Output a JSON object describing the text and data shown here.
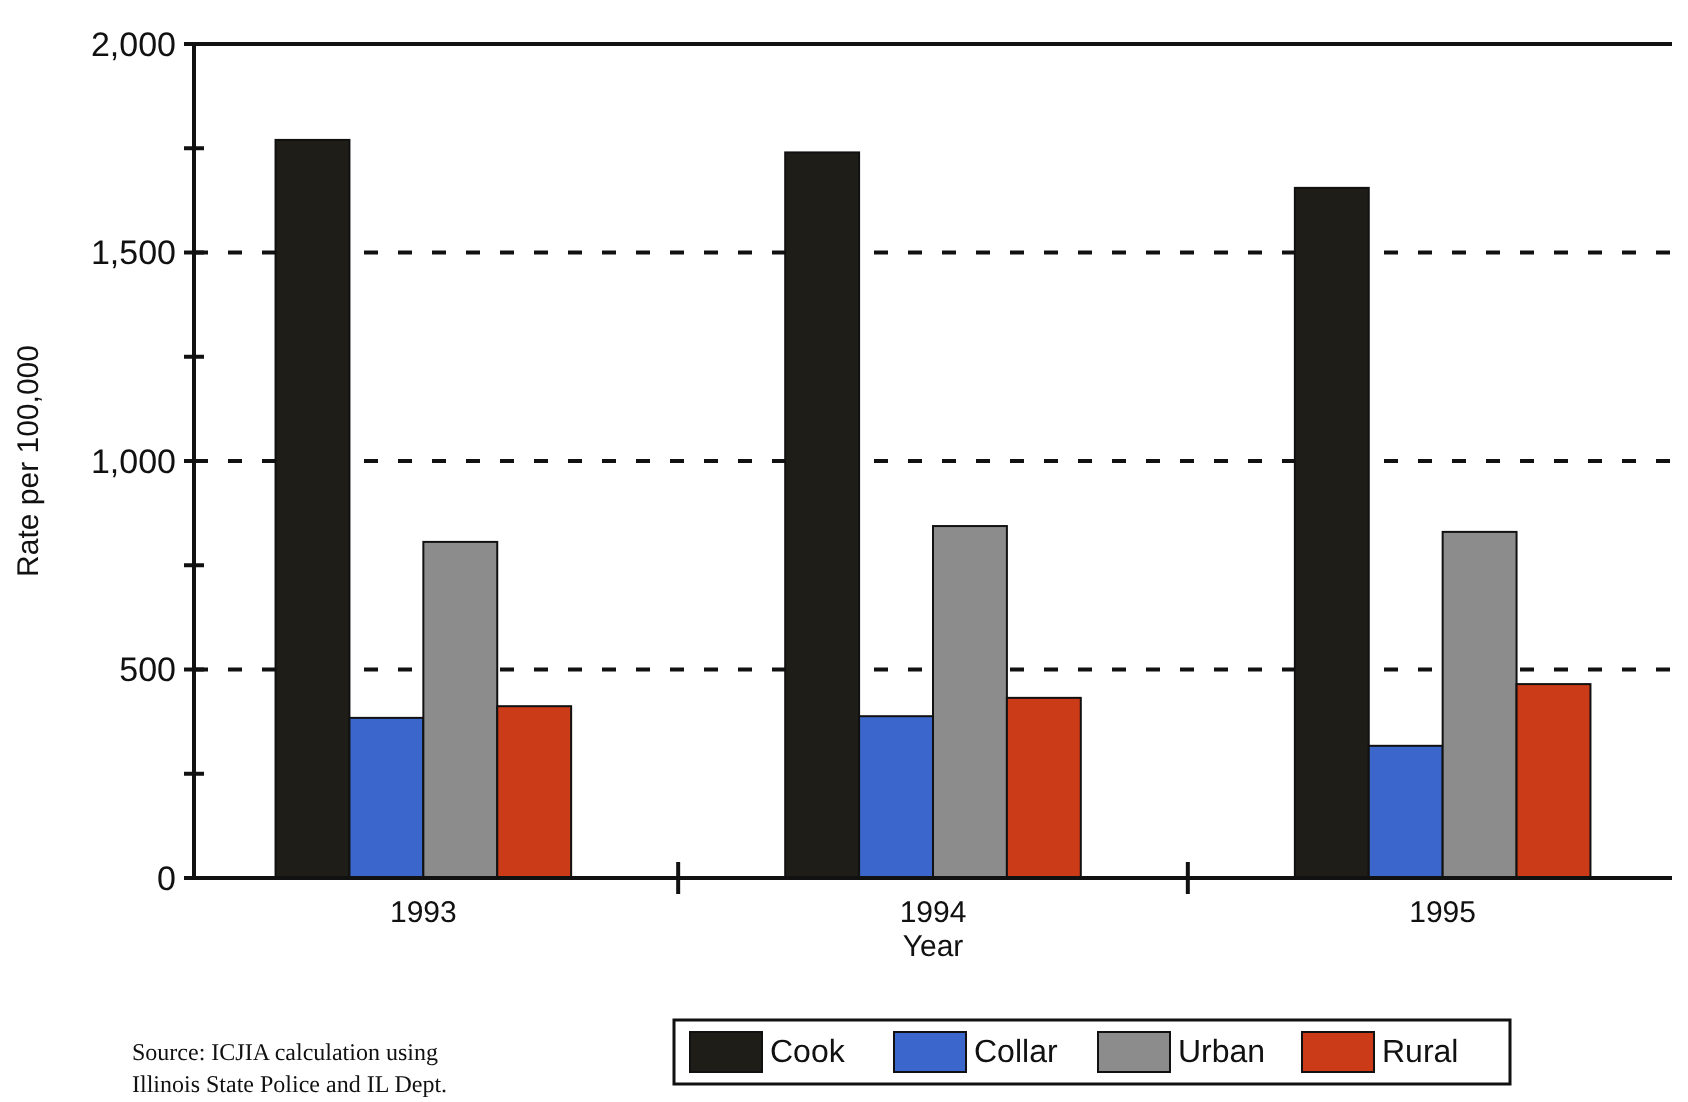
{
  "chart_data": {
    "type": "bar",
    "xlabel": "Year",
    "ylabel": "Rate per 100,000",
    "categories": [
      "1993",
      "1994",
      "1995"
    ],
    "series": [
      {
        "name": "Cook",
        "color": "#1f1d18",
        "values": [
          1770,
          1740,
          1655
        ]
      },
      {
        "name": "Collar",
        "color": "#3b67cc",
        "values": [
          384,
          388,
          317
        ]
      },
      {
        "name": "Urban",
        "color": "#8c8c8c",
        "values": [
          806,
          844,
          830
        ]
      },
      {
        "name": "Rural",
        "color": "#cc3b17",
        "values": [
          412,
          432,
          465
        ]
      }
    ],
    "ylim": [
      0,
      2000
    ],
    "yticks": [
      0,
      {
        "value": 250,
        "label": null
      },
      500,
      {
        "value": 750,
        "label": null
      },
      {
        "value": 1000,
        "label": "1,000"
      },
      {
        "value": 1250,
        "label": null
      },
      {
        "value": 1500,
        "label": "1,500"
      },
      {
        "value": 1750,
        "label": null
      },
      {
        "value": 2000,
        "label": "2,000"
      }
    ],
    "grid": "y",
    "legend": "bottom",
    "annotations": [
      "Source: ICJIA calculation using Illinois State Police and IL Dept."
    ]
  }
}
